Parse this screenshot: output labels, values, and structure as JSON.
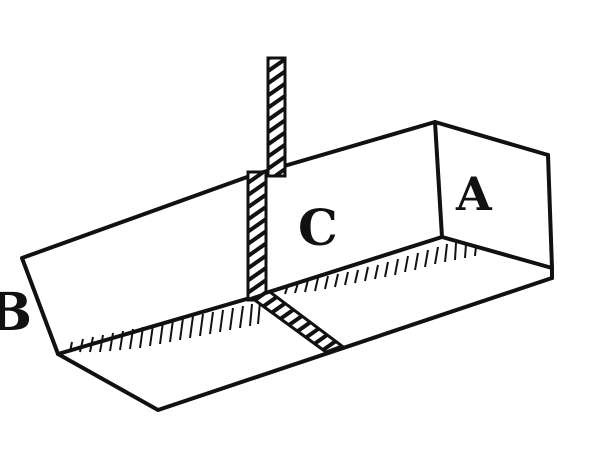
{
  "figure": {
    "labels": {
      "a": "A",
      "b": "B",
      "c": "C"
    },
    "colors": {
      "ink": "#111111",
      "paper": "#ffffff"
    }
  }
}
